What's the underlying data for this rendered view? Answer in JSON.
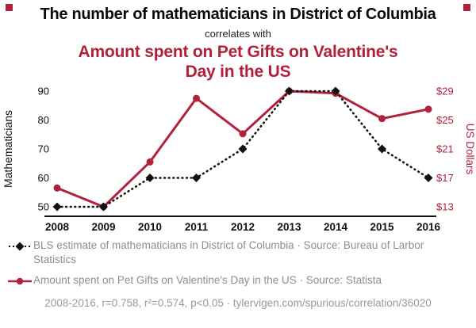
{
  "colors": {
    "accent": "#b2213c",
    "line_black": "#111111",
    "legend_gray": "#8e8e8e",
    "footer_gray": "#9a9a9a"
  },
  "header": {
    "title": "The number of mathematicians in District of Columbia",
    "subtitle": "correlates with",
    "secondary_title": "Amount spent on Pet Gifts on Valentine's Day in the US"
  },
  "chart_data": {
    "type": "line",
    "x": [
      2008,
      2009,
      2010,
      2011,
      2012,
      2013,
      2014,
      2015,
      2016
    ],
    "left_axis": {
      "label": "Mathematicians",
      "ticks": [
        50,
        60,
        70,
        80,
        90
      ],
      "range": [
        50,
        90
      ]
    },
    "right_axis": {
      "label": "US Dollars",
      "tick_values": [
        13,
        17,
        21,
        25,
        29
      ],
      "tick_labels": [
        "$13",
        "$17",
        "$21",
        "$25",
        "$29"
      ],
      "range": [
        13,
        29
      ]
    },
    "grid": false,
    "legend_position": "below",
    "series": [
      {
        "name": "BLS estimate of mathematicians in District of Columbia",
        "axis": "left",
        "color": "#111111",
        "line": "dotted",
        "marker": "diamond",
        "values": [
          50,
          50,
          60,
          60,
          70,
          90,
          90,
          70,
          60
        ]
      },
      {
        "name": "Amount spent on Pet Gifts on Valentine's Day in the US",
        "axis": "right",
        "color": "#b2213c",
        "line": "solid",
        "marker": "circle",
        "values": [
          15.6,
          13,
          19.2,
          28,
          23.1,
          29,
          28.7,
          25.2,
          26.5
        ]
      }
    ]
  },
  "legend": [
    {
      "text": "BLS estimate of mathematicians in District of Columbia · Source: Bureau of Larbor Statistics"
    },
    {
      "text": "Amount spent on Pet Gifts on Valentine's Day in the US · Source: Statista"
    }
  ],
  "footer": "2008-2016, r=0.758, r²=0.574, p<0.05 · tylervigen.com/spurious/correlation/36020"
}
